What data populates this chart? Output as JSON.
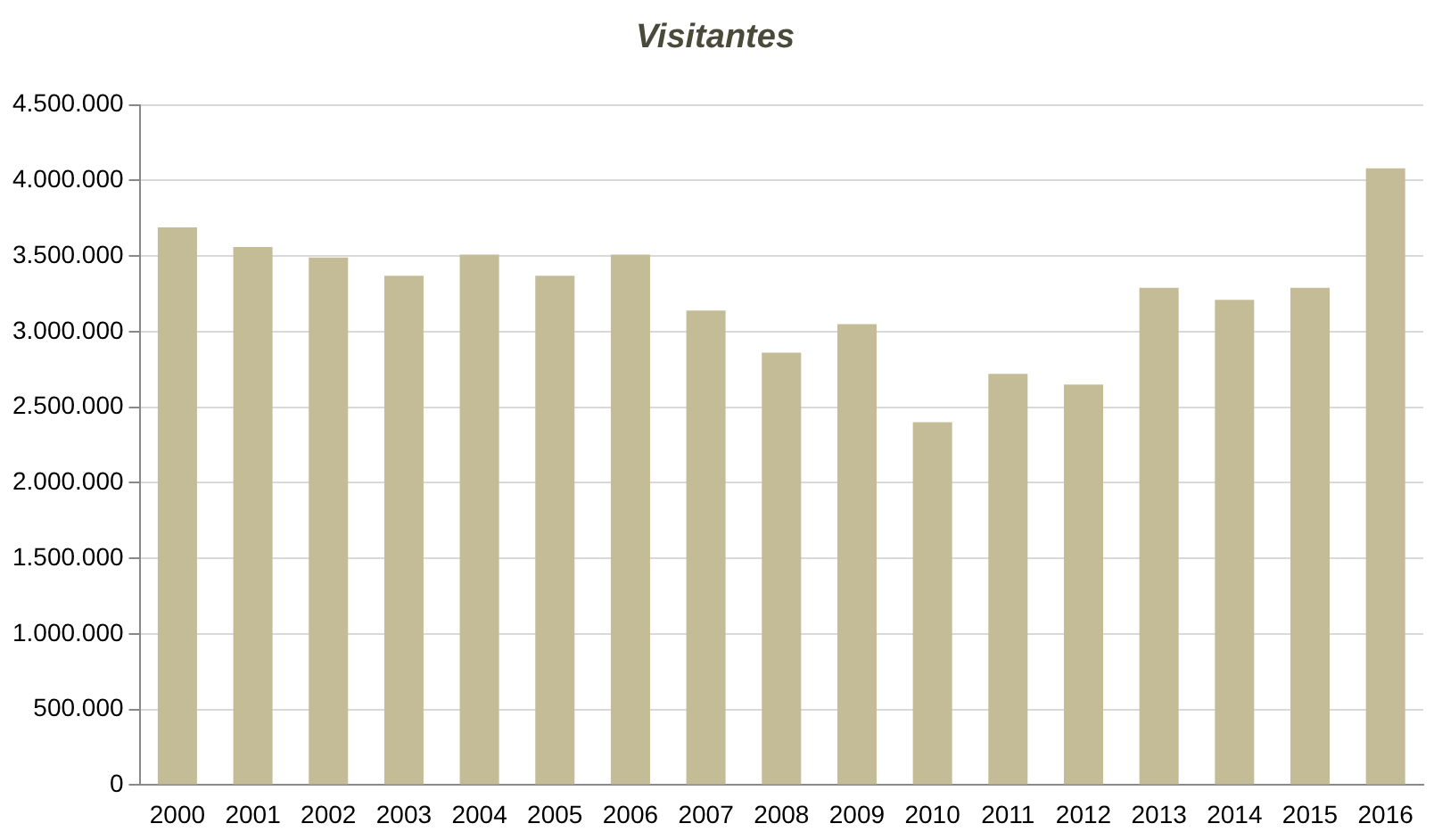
{
  "chart_data": {
    "type": "bar",
    "title": "Visitantes",
    "categories": [
      "2000",
      "2001",
      "2002",
      "2003",
      "2004",
      "2005",
      "2006",
      "2007",
      "2008",
      "2009",
      "2010",
      "2011",
      "2012",
      "2013",
      "2014",
      "2015",
      "2016"
    ],
    "values": [
      3690000,
      3560000,
      3490000,
      3370000,
      3510000,
      3370000,
      3510000,
      3140000,
      2860000,
      3050000,
      2400000,
      2720000,
      2650000,
      3290000,
      3210000,
      3290000,
      4080000
    ],
    "color": "#c4bc96",
    "ylim": [
      0,
      4500000
    ],
    "yticks": [
      {
        "value": 0,
        "label": "0"
      },
      {
        "value": 500000,
        "label": "500.000"
      },
      {
        "value": 1000000,
        "label": "1.000.000"
      },
      {
        "value": 1500000,
        "label": "1.500.000"
      },
      {
        "value": 2000000,
        "label": "2.000.000"
      },
      {
        "value": 2500000,
        "label": "2.500.000"
      },
      {
        "value": 3000000,
        "label": "3.000.000"
      },
      {
        "value": 3500000,
        "label": "3.500.000"
      },
      {
        "value": 4000000,
        "label": "4.000.000"
      },
      {
        "value": 4500000,
        "label": "4.500.000"
      }
    ],
    "grid": "y",
    "legend": false
  }
}
